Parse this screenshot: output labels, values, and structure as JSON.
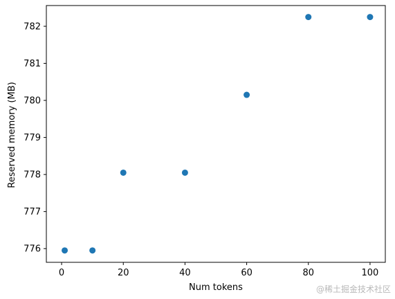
{
  "chart_data": {
    "type": "scatter",
    "title": "",
    "xlabel": "Num tokens",
    "ylabel": "Reserved memory (MB)",
    "xlim": [
      -4.95,
      104.95
    ],
    "ylim": [
      775.63,
      782.56
    ],
    "xticks": [
      0,
      20,
      40,
      60,
      80,
      100
    ],
    "yticks": [
      776,
      777,
      778,
      779,
      780,
      781,
      782
    ],
    "grid": false,
    "marker_color": "#1f77b4",
    "series": [
      {
        "x": [
          1,
          10,
          20,
          40,
          60,
          80,
          100
        ],
        "y": [
          775.95,
          775.95,
          778.05,
          778.05,
          780.15,
          782.25,
          782.25
        ]
      }
    ]
  },
  "watermark": "@稀土掘金技术社区"
}
